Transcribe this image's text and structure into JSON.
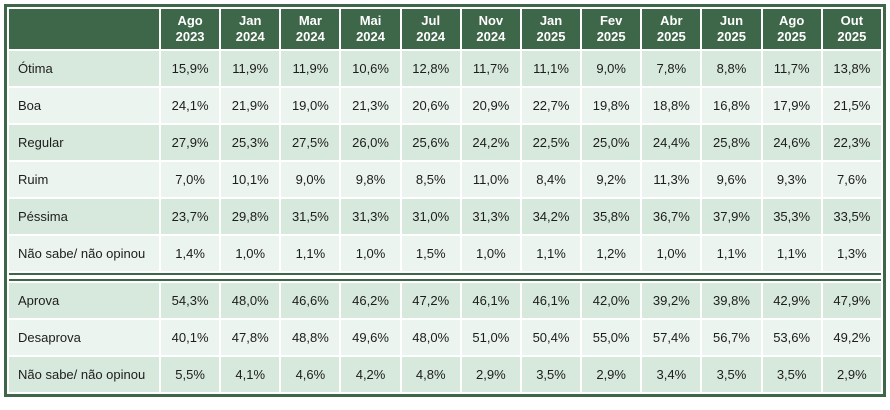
{
  "chart_data": {
    "type": "table",
    "title": "",
    "columns": [
      "Ago 2023",
      "Jan 2024",
      "Mar 2024",
      "Mai 2024",
      "Jul 2024",
      "Nov 2024",
      "Jan 2025",
      "Fev 2025",
      "Abr 2025",
      "Jun 2025",
      "Ago 2025",
      "Out 2025"
    ],
    "sections": [
      {
        "name": "avaliacao",
        "rows": [
          {
            "label": "Ótima",
            "values": [
              "15,9%",
              "11,9%",
              "11,9%",
              "10,6%",
              "12,8%",
              "11,7%",
              "11,1%",
              "9,0%",
              "7,8%",
              "8,8%",
              "11,7%",
              "13,8%"
            ]
          },
          {
            "label": "Boa",
            "values": [
              "24,1%",
              "21,9%",
              "19,0%",
              "21,3%",
              "20,6%",
              "20,9%",
              "22,7%",
              "19,8%",
              "18,8%",
              "16,8%",
              "17,9%",
              "21,5%"
            ]
          },
          {
            "label": "Regular",
            "values": [
              "27,9%",
              "25,3%",
              "27,5%",
              "26,0%",
              "25,6%",
              "24,2%",
              "22,5%",
              "25,0%",
              "24,4%",
              "25,8%",
              "24,6%",
              "22,3%"
            ]
          },
          {
            "label": "Ruim",
            "values": [
              "7,0%",
              "10,1%",
              "9,0%",
              "9,8%",
              "8,5%",
              "11,0%",
              "8,4%",
              "9,2%",
              "11,3%",
              "9,6%",
              "9,3%",
              "7,6%"
            ]
          },
          {
            "label": "Péssima",
            "values": [
              "23,7%",
              "29,8%",
              "31,5%",
              "31,3%",
              "31,0%",
              "31,3%",
              "34,2%",
              "35,8%",
              "36,7%",
              "37,9%",
              "35,3%",
              "33,5%"
            ]
          },
          {
            "label": "Não sabe/ não opinou",
            "values": [
              "1,4%",
              "1,0%",
              "1,1%",
              "1,0%",
              "1,5%",
              "1,0%",
              "1,1%",
              "1,2%",
              "1,0%",
              "1,1%",
              "1,1%",
              "1,3%"
            ]
          }
        ]
      },
      {
        "name": "aprovacao",
        "rows": [
          {
            "label": "Aprova",
            "values": [
              "54,3%",
              "48,0%",
              "46,6%",
              "46,2%",
              "47,2%",
              "46,1%",
              "46,1%",
              "42,0%",
              "39,2%",
              "39,8%",
              "42,9%",
              "47,9%"
            ]
          },
          {
            "label": "Desaprova",
            "values": [
              "40,1%",
              "47,8%",
              "48,8%",
              "49,6%",
              "48,0%",
              "51,0%",
              "50,4%",
              "55,0%",
              "57,4%",
              "56,7%",
              "53,6%",
              "49,2%"
            ]
          },
          {
            "label": "Não sabe/ não opinou",
            "values": [
              "5,5%",
              "4,1%",
              "4,6%",
              "4,2%",
              "4,8%",
              "2,9%",
              "3,5%",
              "2,9%",
              "3,4%",
              "3,5%",
              "3,5%",
              "2,9%"
            ]
          }
        ]
      }
    ],
    "layout": {
      "header_position": "top",
      "label_column_position": "left",
      "row_striping": "alternating per section, starting dark",
      "section_separator": "white band with green rules"
    }
  },
  "colors": {
    "green": "#3e6648",
    "row_dark": "#d7e8dd",
    "row_light": "#ebf4ee",
    "gridline": "#ffffff",
    "header_text": "#ffffff",
    "body_text": "#1d1d1b"
  }
}
